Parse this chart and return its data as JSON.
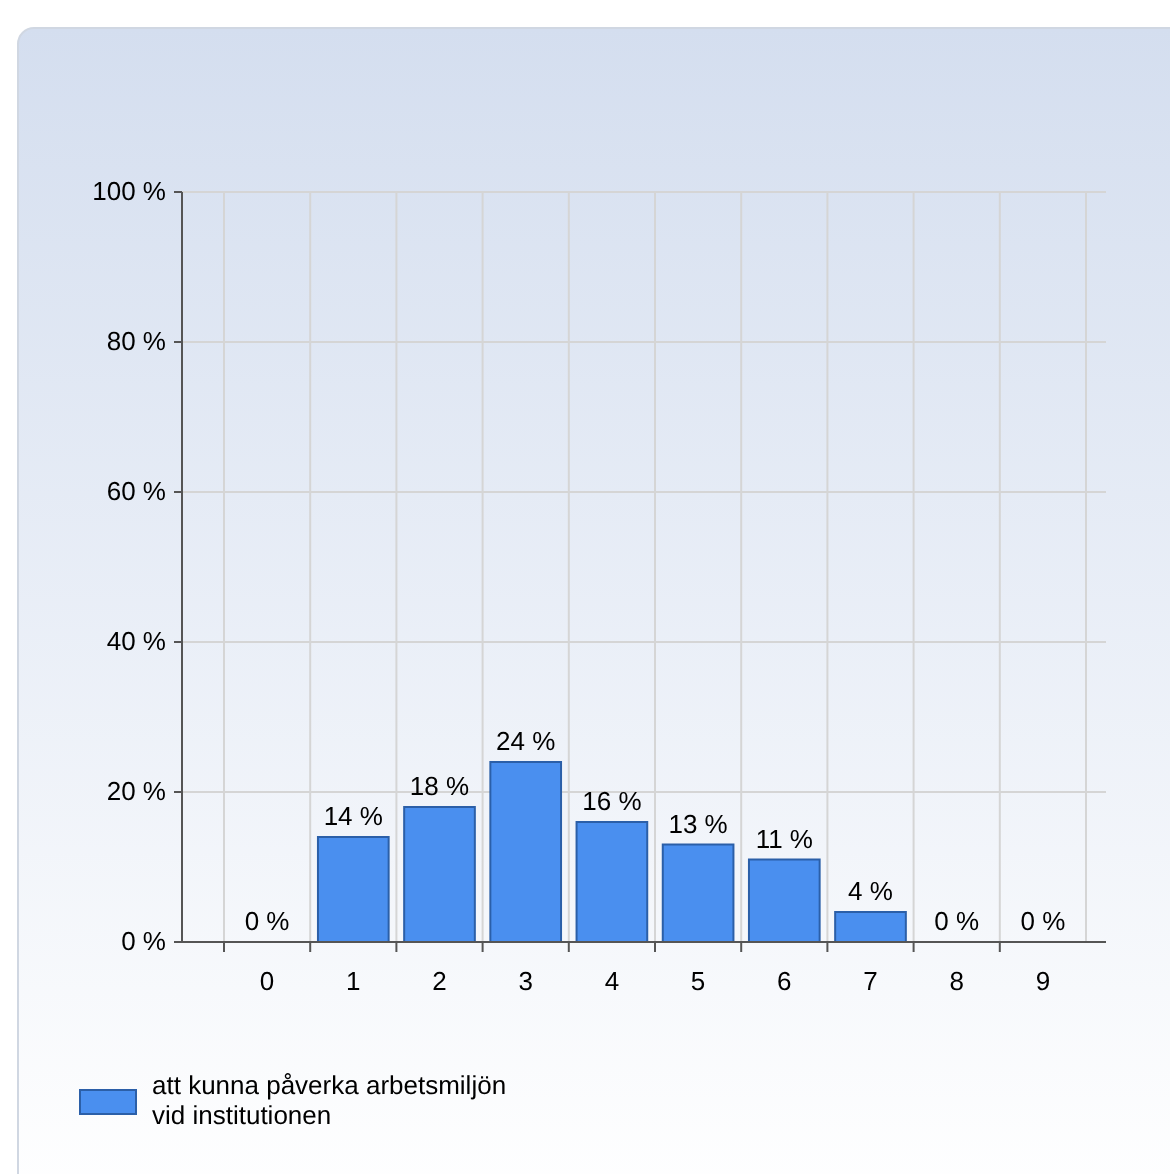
{
  "chart_data": {
    "type": "bar",
    "categories": [
      "0",
      "1",
      "2",
      "3",
      "4",
      "5",
      "6",
      "7",
      "8",
      "9"
    ],
    "series": [
      {
        "name": "att kunna påverka arbetsmiljön vid institutionen",
        "color": "#4a8fef",
        "values": [
          0,
          14,
          18,
          24,
          16,
          13,
          11,
          4,
          0,
          0
        ],
        "value_labels": [
          "0 %",
          "14 %",
          "18 %",
          "24 %",
          "16 %",
          "13 %",
          "11 %",
          "4 %",
          "0 %",
          "0 %"
        ]
      }
    ],
    "ylim": [
      0,
      100
    ],
    "yticks": [
      {
        "value": 0,
        "label": "0 %"
      },
      {
        "value": 20,
        "label": "20 %"
      },
      {
        "value": 40,
        "label": "40 %"
      },
      {
        "value": 60,
        "label": "60 %"
      },
      {
        "value": 80,
        "label": "80 %"
      },
      {
        "value": 100,
        "label": "100 %"
      }
    ],
    "grid": true,
    "legend": "bottom left"
  }
}
